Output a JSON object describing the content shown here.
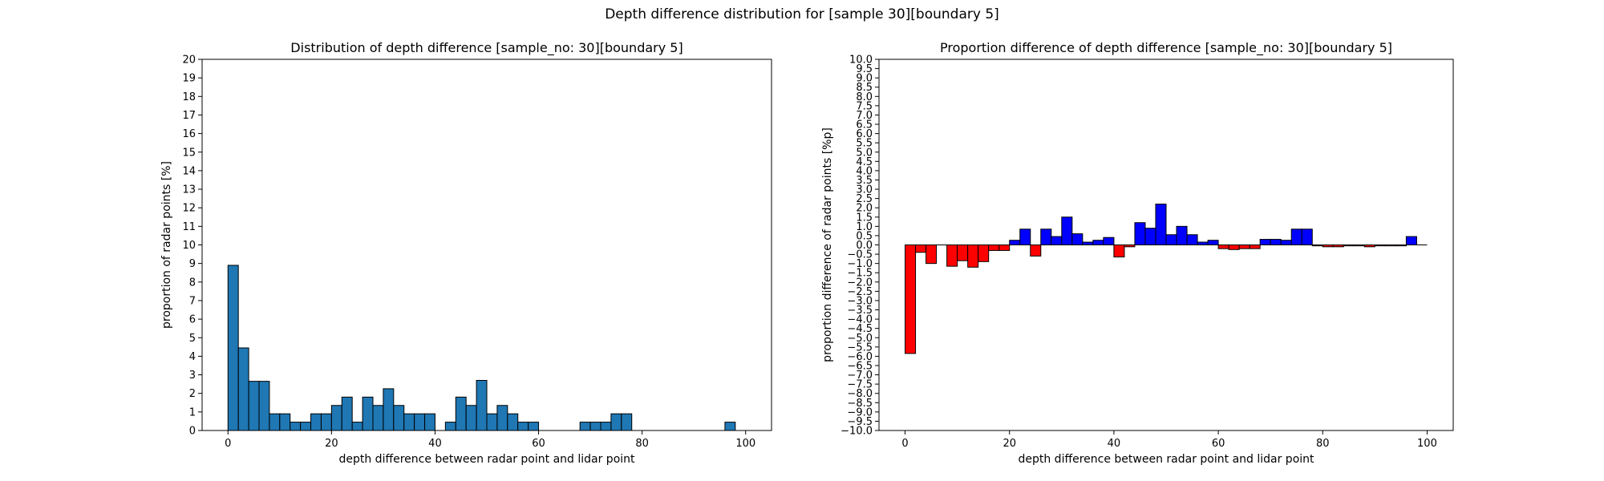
{
  "figure": {
    "suptitle": "Depth difference distribution for [sample 30][boundary 5]"
  },
  "chart_data": [
    {
      "type": "bar",
      "title": "Distribution of depth difference [sample_no: 30][boundary 5]",
      "xlabel": "depth difference between radar point and lidar point",
      "ylabel": "proportion of radar points [%]",
      "xlim": [
        -5,
        105
      ],
      "ylim": [
        0,
        20
      ],
      "xticks": [
        0,
        20,
        40,
        60,
        80,
        100
      ],
      "yticks": [
        0,
        1,
        2,
        3,
        4,
        5,
        6,
        7,
        8,
        9,
        10,
        11,
        12,
        13,
        14,
        15,
        16,
        17,
        18,
        19,
        20
      ],
      "bin_width": 2,
      "bin_edges_start": 0,
      "values": [
        8.9,
        4.45,
        2.65,
        2.65,
        0.9,
        0.9,
        0.45,
        0.45,
        0.9,
        0.9,
        1.35,
        1.8,
        0.45,
        1.8,
        1.35,
        2.25,
        1.35,
        0.9,
        0.9,
        0.9,
        0,
        0.45,
        1.8,
        1.35,
        2.7,
        0.9,
        1.35,
        0.9,
        0.45,
        0.45,
        0,
        0,
        0,
        0,
        0.45,
        0.45,
        0.45,
        0.9,
        0.9,
        0,
        0,
        0,
        0,
        0,
        0,
        0,
        0,
        0,
        0.45,
        0
      ],
      "colors": {
        "bar": "#1f77b4",
        "edge": "#000000"
      }
    },
    {
      "type": "bar",
      "title": "Proportion difference of depth difference [sample_no: 30][boundary 5]",
      "xlabel": "depth difference between radar point and lidar point",
      "ylabel": "proportion difference of radar points [%p]",
      "xlim": [
        -5,
        105
      ],
      "ylim": [
        -10,
        10
      ],
      "xticks": [
        0,
        20,
        40,
        60,
        80,
        100
      ],
      "yticks": [
        -10.0,
        -9.5,
        -9.0,
        -8.5,
        -8.0,
        -7.5,
        -7.0,
        -6.5,
        -6.0,
        -5.5,
        -5.0,
        -4.5,
        -4.0,
        -3.5,
        -3.0,
        -2.5,
        -2.0,
        -1.5,
        -1.0,
        -0.5,
        0.0,
        0.5,
        1.0,
        1.5,
        2.0,
        2.5,
        3.0,
        3.5,
        4.0,
        4.5,
        5.0,
        5.5,
        6.0,
        6.5,
        7.0,
        7.5,
        8.0,
        8.5,
        9.0,
        9.5,
        10.0
      ],
      "bin_width": 2,
      "bin_edges_start": 0,
      "values": [
        -5.85,
        -0.4,
        -1.0,
        0.0,
        -1.15,
        -0.85,
        -1.2,
        -0.9,
        -0.3,
        -0.3,
        0.25,
        0.85,
        -0.6,
        0.85,
        0.45,
        1.5,
        0.6,
        0.15,
        0.25,
        0.4,
        -0.65,
        -0.1,
        1.2,
        0.9,
        2.2,
        0.55,
        1.0,
        0.55,
        0.15,
        0.25,
        -0.2,
        -0.25,
        -0.2,
        -0.2,
        0.3,
        0.3,
        0.25,
        0.85,
        0.85,
        -0.05,
        -0.1,
        -0.1,
        -0.05,
        -0.05,
        -0.1,
        -0.05,
        -0.05,
        -0.05,
        0.45,
        0.0
      ],
      "colors": {
        "positive": "#0000ff",
        "negative": "#ff0000",
        "edge": "#000000"
      }
    }
  ]
}
